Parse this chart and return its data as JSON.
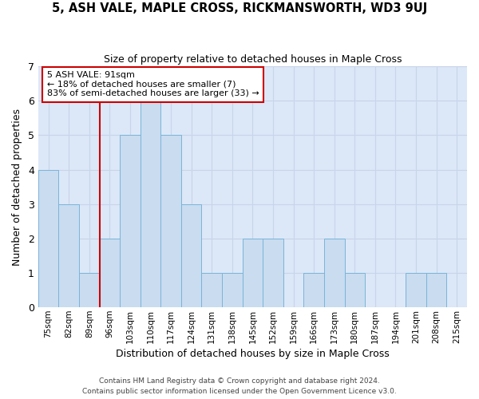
{
  "title": "5, ASH VALE, MAPLE CROSS, RICKMANSWORTH, WD3 9UJ",
  "subtitle": "Size of property relative to detached houses in Maple Cross",
  "xlabel": "Distribution of detached houses by size in Maple Cross",
  "ylabel": "Number of detached properties",
  "bar_labels": [
    "75sqm",
    "82sqm",
    "89sqm",
    "96sqm",
    "103sqm",
    "110sqm",
    "117sqm",
    "124sqm",
    "131sqm",
    "138sqm",
    "145sqm",
    "152sqm",
    "159sqm",
    "166sqm",
    "173sqm",
    "180sqm",
    "187sqm",
    "194sqm",
    "201sqm",
    "208sqm",
    "215sqm"
  ],
  "bar_values": [
    4,
    3,
    1,
    2,
    5,
    6,
    5,
    3,
    1,
    1,
    2,
    2,
    0,
    1,
    2,
    1,
    0,
    0,
    1,
    1,
    0
  ],
  "bar_color": "#c9dcf0",
  "bar_edgecolor": "#7ab4d8",
  "vline_x_index": 2,
  "vline_color": "#cc0000",
  "annotation_title": "5 ASH VALE: 91sqm",
  "annotation_line1": "← 18% of detached houses are smaller (7)",
  "annotation_line2": "83% of semi-detached houses are larger (33) →",
  "annotation_box_facecolor": "#ffffff",
  "annotation_box_edgecolor": "#cc0000",
  "ylim": [
    0,
    7
  ],
  "yticks": [
    0,
    1,
    2,
    3,
    4,
    5,
    6,
    7
  ],
  "grid_color": "#c8d4e8",
  "plot_bgcolor": "#dce8f8",
  "fig_bgcolor": "#ffffff",
  "footer1": "Contains HM Land Registry data © Crown copyright and database right 2024.",
  "footer2": "Contains public sector information licensed under the Open Government Licence v3.0."
}
